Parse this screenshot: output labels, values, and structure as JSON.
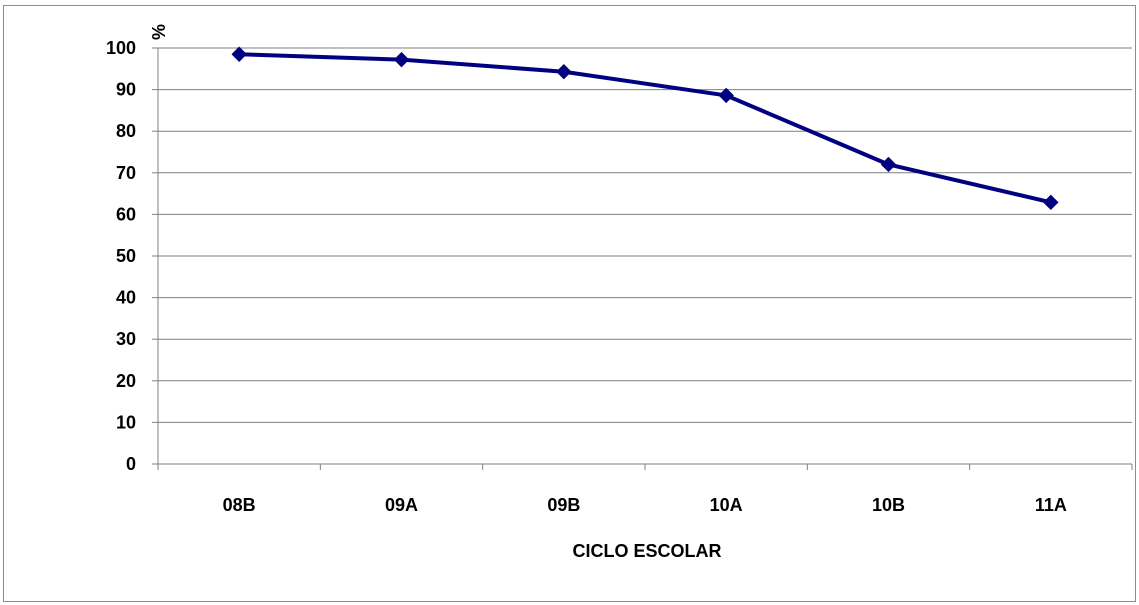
{
  "chart_data": {
    "type": "line",
    "title": "",
    "xlabel": "CICLO ESCOLAR",
    "ylabel": "%",
    "categories": [
      "08B",
      "09A",
      "09B",
      "10A",
      "10B",
      "11A"
    ],
    "series": [
      {
        "values": [
          98.5,
          97.2,
          94.3,
          88.6,
          72.0,
          62.9
        ],
        "color": "#000080",
        "marker": "diamond"
      }
    ],
    "ylim": [
      0,
      100
    ],
    "yticks": [
      "0",
      "10",
      "20",
      "30",
      "40",
      "50",
      "60",
      "70",
      "80",
      "90",
      "100"
    ],
    "grid": true,
    "legend": "none"
  }
}
